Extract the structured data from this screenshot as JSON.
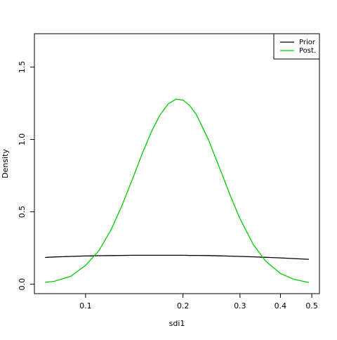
{
  "chart_data": {
    "type": "line",
    "x_label": "sdi1",
    "y_label": "Density",
    "log_x": true,
    "x": [
      0.075,
      0.08,
      0.09,
      0.1,
      0.11,
      0.12,
      0.13,
      0.14,
      0.15,
      0.16,
      0.17,
      0.18,
      0.19,
      0.2,
      0.21,
      0.22,
      0.24,
      0.26,
      0.28,
      0.3,
      0.33,
      0.36,
      0.4,
      0.44,
      0.49
    ],
    "series": [
      {
        "name": "Prior",
        "color": "#000000",
        "values": [
          0.185,
          0.188,
          0.192,
          0.195,
          0.197,
          0.198,
          0.199,
          0.2,
          0.2,
          0.2,
          0.2,
          0.2,
          0.2,
          0.2,
          0.199,
          0.199,
          0.198,
          0.196,
          0.194,
          0.192,
          0.189,
          0.186,
          0.182,
          0.177,
          0.172
        ]
      },
      {
        "name": "Post.",
        "color": "#00cd00",
        "values": [
          0.013,
          0.02,
          0.055,
          0.13,
          0.232,
          0.378,
          0.551,
          0.733,
          0.907,
          1.057,
          1.171,
          1.245,
          1.278,
          1.272,
          1.233,
          1.171,
          0.996,
          0.797,
          0.612,
          0.453,
          0.273,
          0.16,
          0.074,
          0.034,
          0.012
        ]
      }
    ],
    "xlim": [
      0.0695,
      0.528
    ],
    "ylim": [
      -0.065,
      1.73
    ],
    "xticks": [
      0.1,
      0.2,
      0.3,
      0.4,
      0.5
    ],
    "yticks": [
      {
        "value": 0,
        "label": "0.0"
      },
      0.5,
      {
        "value": 1,
        "label": "1.0"
      },
      1.5
    ],
    "legend": "top-right"
  }
}
